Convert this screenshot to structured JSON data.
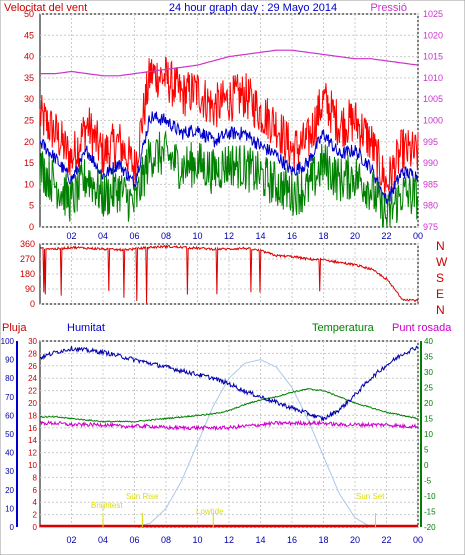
{
  "header": {
    "wind_label": "Velocitat del vent",
    "title": "24 hour graph day : 29 Mayo 2014",
    "pressure_label": "Pressió"
  },
  "dir_letters": [
    "N",
    "W",
    "S",
    "E",
    "N"
  ],
  "lower_labels": {
    "rain": "Pluja",
    "humidity": "Humitat",
    "temperature": "Temperatura",
    "dewpoint": "Punt rosada"
  },
  "events": {
    "brightest": "Brightest",
    "sunrise": "Sun Rise",
    "lowtide": "Lowtide",
    "sunset": "Sun Set"
  },
  "colors": {
    "wind_gust": "#ff0000",
    "wind_avg": "#0000cc",
    "wind_min": "#008000",
    "pressure": "#cc33cc",
    "direction": "#dd0000",
    "humidity": "#0000aa",
    "temperature": "#008000",
    "dewpoint": "#cc00cc",
    "rain": "#dd0000",
    "solar": "#a8c8ee",
    "event": "#dddd00"
  },
  "chart_data": [
    {
      "type": "line",
      "title": "24 hour graph day : 29 Mayo 2014",
      "x_ticks": [
        "02",
        "04",
        "06",
        "08",
        "10",
        "12",
        "14",
        "16",
        "18",
        "20",
        "22",
        "00"
      ],
      "y_left": {
        "label": "Velocitat del vent",
        "range": [
          0,
          50
        ],
        "ticks": [
          0,
          5,
          10,
          15,
          20,
          25,
          30,
          35,
          40,
          45,
          50
        ]
      },
      "y_right": {
        "label": "Pressió",
        "range": [
          975,
          1025
        ],
        "ticks": [
          975,
          980,
          985,
          990,
          995,
          1000,
          1005,
          1010,
          1015,
          1020,
          1025
        ]
      },
      "x_hours": [
        0,
        1,
        2,
        3,
        4,
        5,
        6,
        7,
        8,
        9,
        10,
        11,
        12,
        13,
        14,
        15,
        16,
        17,
        18,
        19,
        20,
        21,
        22,
        23,
        24
      ],
      "series": [
        {
          "name": "gust",
          "values": [
            26,
            22,
            16,
            24,
            17,
            20,
            14,
            36,
            35,
            31,
            32,
            28,
            30,
            31,
            27,
            24,
            18,
            20,
            30,
            24,
            25,
            20,
            10,
            18,
            17
          ]
        },
        {
          "name": "avg",
          "values": [
            20,
            16,
            11,
            18,
            12,
            15,
            10,
            26,
            25,
            22,
            23,
            20,
            22,
            22,
            19,
            17,
            13,
            15,
            22,
            17,
            18,
            14,
            6,
            13,
            12
          ]
        },
        {
          "name": "min",
          "values": [
            14,
            10,
            6,
            12,
            7,
            9,
            5,
            17,
            17,
            14,
            15,
            13,
            15,
            14,
            12,
            10,
            8,
            9,
            15,
            11,
            12,
            9,
            2,
            8,
            7
          ]
        },
        {
          "name": "pressure",
          "values": [
            1011,
            1011,
            1011.5,
            1011,
            1010.5,
            1010.5,
            1011,
            1011.5,
            1012,
            1012.5,
            1013,
            1014,
            1015,
            1015.5,
            1016,
            1016.5,
            1016.5,
            1016,
            1015.5,
            1015,
            1014.5,
            1014.5,
            1014,
            1013.5,
            1013
          ]
        }
      ]
    },
    {
      "type": "scatter",
      "y_range": [
        0,
        360
      ],
      "y_ticks": [
        0,
        90,
        180,
        270,
        360
      ],
      "x_hours": [
        0,
        1,
        2,
        3,
        4,
        5,
        6,
        7,
        8,
        9,
        10,
        11,
        12,
        13,
        14,
        15,
        16,
        17,
        18,
        19,
        20,
        21,
        22,
        23,
        24
      ],
      "values": [
        335,
        330,
        340,
        335,
        330,
        325,
        330,
        340,
        345,
        340,
        335,
        330,
        330,
        335,
        320,
        290,
        285,
        270,
        265,
        250,
        235,
        210,
        150,
        30,
        20
      ]
    },
    {
      "type": "line",
      "y_left_rain": {
        "label": "Pluja",
        "range": [
          0,
          30
        ],
        "ticks": [
          0,
          2,
          4,
          6,
          8,
          10,
          12,
          14,
          16,
          18,
          20,
          22,
          24,
          26,
          28,
          30
        ]
      },
      "y_left_humidity": {
        "label": "Humitat",
        "range": [
          0,
          100
        ],
        "ticks": [
          0,
          10,
          20,
          30,
          40,
          50,
          60,
          70,
          80,
          90,
          100
        ]
      },
      "y_right": {
        "label": "Temperatura",
        "range": [
          -20,
          40
        ],
        "ticks": [
          -20,
          -15,
          -10,
          -5,
          0,
          5,
          10,
          15,
          20,
          25,
          30,
          35,
          40
        ]
      },
      "x_hours": [
        0,
        1,
        2,
        3,
        4,
        5,
        6,
        7,
        8,
        9,
        10,
        11,
        12,
        13,
        14,
        15,
        16,
        17,
        18,
        19,
        20,
        21,
        22,
        23,
        24
      ],
      "series": [
        {
          "name": "humidity",
          "values": [
            91,
            94,
            96,
            95,
            94,
            92,
            90,
            88,
            86,
            84,
            82,
            80,
            77,
            73,
            70,
            67,
            64,
            61,
            58,
            63,
            71,
            80,
            87,
            93,
            97
          ]
        },
        {
          "name": "temperature",
          "values": [
            15.5,
            15.5,
            15,
            14.5,
            14,
            14,
            14,
            14.5,
            15,
            15.5,
            16,
            16.5,
            17.5,
            19.5,
            21,
            22,
            23.5,
            24.5,
            24,
            22,
            20,
            18.5,
            17,
            16,
            15
          ]
        },
        {
          "name": "dewpoint",
          "values": [
            13.5,
            13.5,
            13,
            13,
            13,
            12.5,
            12.5,
            12.5,
            12,
            12,
            12,
            12,
            12,
            12.5,
            13,
            13.5,
            13.5,
            13.5,
            13.5,
            13,
            13,
            13,
            13,
            12.5,
            12.5
          ]
        },
        {
          "name": "rain",
          "values": [
            0,
            0,
            0,
            0,
            0,
            0,
            0,
            0,
            0,
            0,
            0,
            0,
            0,
            0,
            0,
            0,
            0,
            0,
            0,
            0,
            0,
            0,
            0,
            0,
            0
          ]
        },
        {
          "name": "solar",
          "values": [
            0,
            0,
            0,
            0,
            0,
            0,
            0,
            2,
            10,
            25,
            45,
            65,
            80,
            88,
            90,
            86,
            75,
            58,
            38,
            18,
            5,
            0,
            0,
            0,
            0
          ]
        }
      ]
    }
  ]
}
